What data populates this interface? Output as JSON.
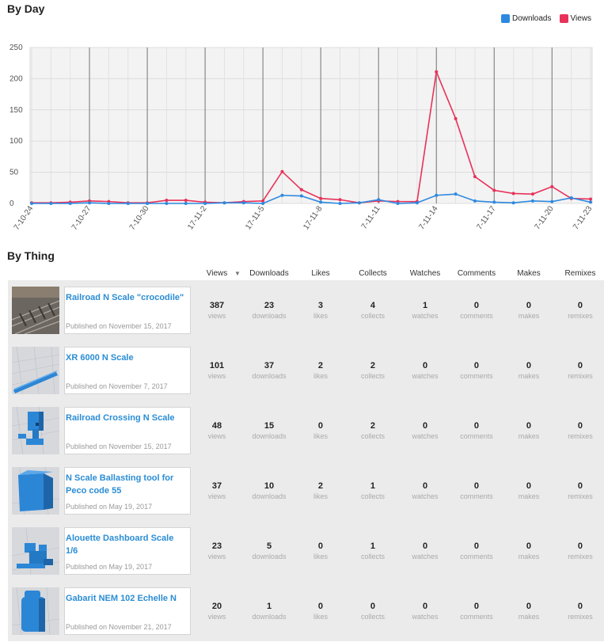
{
  "by_day": {
    "title": "By Day",
    "legend": [
      {
        "label": "Downloads",
        "color": "#2d89e0"
      },
      {
        "label": "Views",
        "color": "#e8325a"
      }
    ]
  },
  "chart_data": {
    "type": "line",
    "x_tick_labels": [
      "7-10-24",
      "7-10-27",
      "7-10-30",
      "17-11-2",
      "17-11-5",
      "17-11-8",
      "7-11-11",
      "7-11-14",
      "7-11-17",
      "7-11-20",
      "7-11-23"
    ],
    "ylim": [
      0,
      250
    ],
    "y_ticks": [
      0,
      50,
      100,
      150,
      200,
      250
    ],
    "grid": true,
    "legend_position": "top-right",
    "series": [
      {
        "name": "Downloads",
        "color": "#2d89e0",
        "values": [
          0,
          0,
          0,
          1,
          0,
          0,
          0,
          0,
          0,
          0,
          1,
          1,
          0,
          13,
          12,
          2,
          0,
          1,
          6,
          0,
          1,
          13,
          15,
          4,
          2,
          1,
          4,
          3,
          9,
          2
        ]
      },
      {
        "name": "Views",
        "color": "#e8325a",
        "values": [
          1,
          1,
          2,
          4,
          3,
          1,
          1,
          5,
          5,
          2,
          1,
          3,
          4,
          51,
          22,
          8,
          6,
          1,
          4,
          3,
          3,
          211,
          136,
          43,
          21,
          16,
          15,
          27,
          8,
          7
        ]
      }
    ]
  },
  "by_thing": {
    "title": "By Thing",
    "columns": [
      "Views",
      "Downloads",
      "Likes",
      "Collects",
      "Watches",
      "Comments",
      "Makes",
      "Remixes"
    ],
    "stat_labels": [
      "views",
      "downloads",
      "likes",
      "collects",
      "watches",
      "comments",
      "makes",
      "remixes"
    ],
    "items": [
      {
        "name": "Railroad N Scale \"crocodile\"",
        "published": "Published on November 15, 2017",
        "thumb": "rail-photo-thumbnail",
        "stats": [
          387,
          23,
          3,
          4,
          1,
          0,
          0,
          0
        ]
      },
      {
        "name": "XR 6000 N Scale",
        "published": "Published on November 7, 2017",
        "thumb": "bar-model-thumbnail",
        "stats": [
          101,
          37,
          2,
          2,
          0,
          0,
          0,
          0
        ]
      },
      {
        "name": "Railroad Crossing N Scale",
        "published": "Published on November 15, 2017",
        "thumb": "crossing-model-thumbnail",
        "stats": [
          48,
          15,
          0,
          2,
          0,
          0,
          0,
          0
        ]
      },
      {
        "name": "N Scale Ballasting tool for Peco code 55",
        "published": "Published on May 19, 2017",
        "thumb": "box-model-thumbnail",
        "stats": [
          37,
          10,
          2,
          1,
          0,
          0,
          0,
          0
        ]
      },
      {
        "name": "Alouette Dashboard Scale 1/6",
        "published": "Published on May 19, 2017",
        "thumb": "dashboard-model-thumbnail",
        "stats": [
          23,
          5,
          0,
          1,
          0,
          0,
          0,
          0
        ]
      },
      {
        "name": "Gabarit NEM 102 Echelle N",
        "published": "Published on November 21, 2017",
        "thumb": "gabarit-model-thumbnail",
        "stats": [
          20,
          1,
          0,
          0,
          0,
          0,
          0,
          0
        ]
      }
    ]
  }
}
